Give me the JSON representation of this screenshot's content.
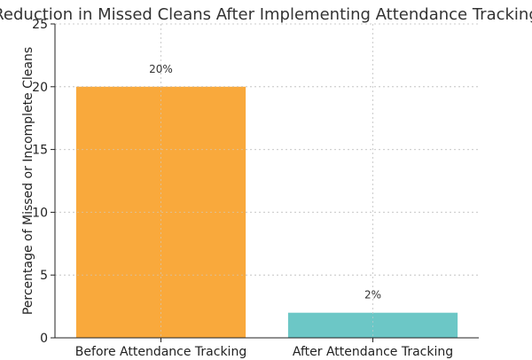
{
  "chart_data": {
    "type": "bar",
    "title": "Reduction in Missed Cleans After Implementing Attendance Tracking",
    "xlabel": "",
    "ylabel": "Percentage of Missed or Incomplete Cleans",
    "categories": [
      "Before Attendance Tracking",
      "After Attendance Tracking"
    ],
    "values": [
      20,
      2
    ],
    "data_labels": [
      "20%",
      "2%"
    ],
    "bar_colors": [
      "#f9a93c",
      "#6cc7c6"
    ],
    "ylim": [
      0,
      25
    ],
    "yticks": [
      0,
      5,
      10,
      15,
      20,
      25
    ],
    "grid": true
  }
}
